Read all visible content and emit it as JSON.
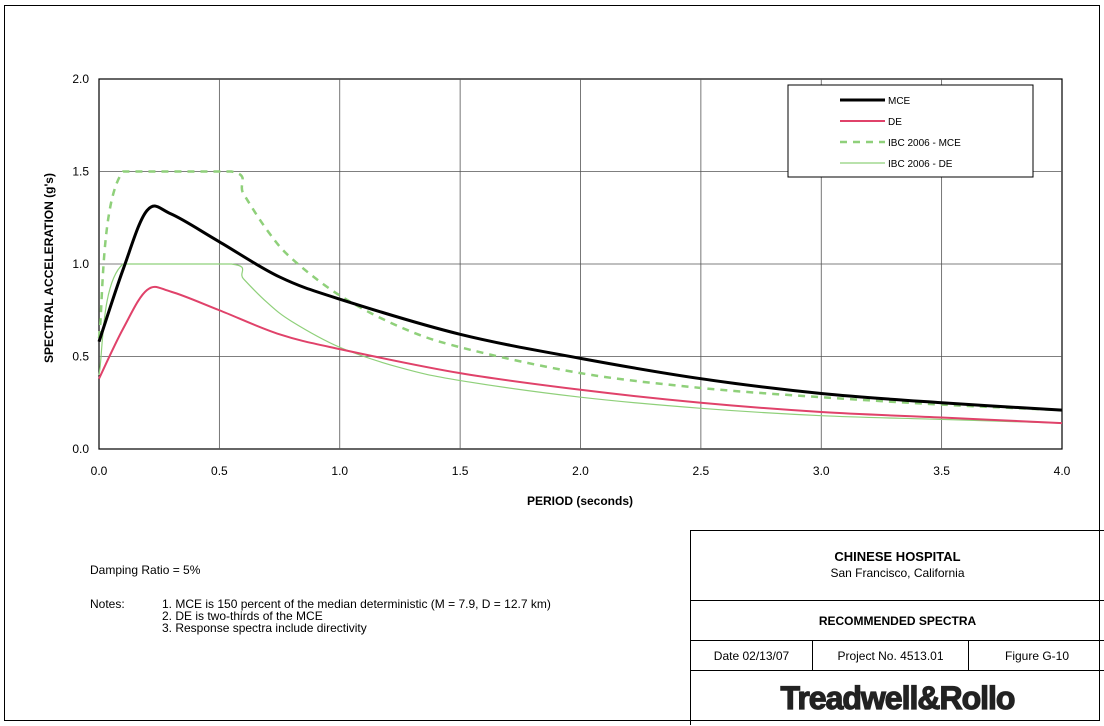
{
  "chart_data": {
    "type": "line",
    "xlabel": "PERIOD (seconds)",
    "ylabel": "SPECTRAL ACCELERATION (g's)",
    "xlim": [
      0.0,
      4.0
    ],
    "ylim": [
      0.0,
      2.0
    ],
    "x_ticks": [
      "0.0",
      "0.5",
      "1.0",
      "1.5",
      "2.0",
      "2.5",
      "3.0",
      "3.5",
      "4.0"
    ],
    "y_ticks": [
      "0.0",
      "0.5",
      "1.0",
      "1.5",
      "2.0"
    ],
    "grid": true,
    "legend_position": "top-right",
    "series": [
      {
        "name": "MCE",
        "color": "#000000",
        "style": "solid-thick",
        "points": [
          [
            0.0,
            0.58
          ],
          [
            0.1,
            0.97
          ],
          [
            0.2,
            1.29
          ],
          [
            0.3,
            1.27
          ],
          [
            0.5,
            1.12
          ],
          [
            0.75,
            0.93
          ],
          [
            1.0,
            0.81
          ],
          [
            1.5,
            0.62
          ],
          [
            2.0,
            0.49
          ],
          [
            2.5,
            0.38
          ],
          [
            3.0,
            0.3
          ],
          [
            3.5,
            0.25
          ],
          [
            4.0,
            0.21
          ]
        ]
      },
      {
        "name": "DE",
        "color": "#e0426a",
        "style": "solid",
        "points": [
          [
            0.0,
            0.38
          ],
          [
            0.1,
            0.65
          ],
          [
            0.2,
            0.86
          ],
          [
            0.3,
            0.85
          ],
          [
            0.5,
            0.75
          ],
          [
            0.75,
            0.62
          ],
          [
            1.0,
            0.54
          ],
          [
            1.5,
            0.41
          ],
          [
            2.0,
            0.32
          ],
          [
            2.5,
            0.25
          ],
          [
            3.0,
            0.2
          ],
          [
            3.5,
            0.17
          ],
          [
            4.0,
            0.14
          ]
        ]
      },
      {
        "name": "IBC 2006 - MCE",
        "color": "#8fd07a",
        "style": "dashed",
        "points": [
          [
            0.0,
            0.6
          ],
          [
            0.1,
            1.5
          ],
          [
            0.55,
            1.5
          ],
          [
            0.6,
            1.38
          ],
          [
            0.7,
            1.18
          ],
          [
            0.8,
            1.03
          ],
          [
            1.0,
            0.83
          ],
          [
            1.25,
            0.66
          ],
          [
            1.5,
            0.55
          ],
          [
            2.0,
            0.41
          ],
          [
            2.5,
            0.33
          ],
          [
            3.0,
            0.28
          ],
          [
            3.5,
            0.24
          ],
          [
            4.0,
            0.21
          ]
        ]
      },
      {
        "name": "IBC 2006 - DE",
        "color": "#8fd07a",
        "style": "solid-thin",
        "points": [
          [
            0.0,
            0.4
          ],
          [
            0.1,
            1.0
          ],
          [
            0.55,
            1.0
          ],
          [
            0.6,
            0.92
          ],
          [
            0.7,
            0.79
          ],
          [
            0.8,
            0.69
          ],
          [
            1.0,
            0.55
          ],
          [
            1.25,
            0.44
          ],
          [
            1.5,
            0.37
          ],
          [
            2.0,
            0.28
          ],
          [
            2.5,
            0.22
          ],
          [
            3.0,
            0.18
          ],
          [
            3.5,
            0.16
          ],
          [
            4.0,
            0.14
          ]
        ]
      }
    ]
  },
  "damping": "Damping Ratio = 5%",
  "notes": {
    "label": "Notes:",
    "items": [
      "1. MCE is 150 percent of the median deterministic (M = 7.9, D = 12.7 km)",
      "2. DE is two-thirds of the MCE",
      "3. Response spectra include directivity"
    ]
  },
  "title_block": {
    "project_name": "CHINESE HOSPITAL",
    "location": "San Francisco, California",
    "figure_title": "RECOMMENDED SPECTRA",
    "date": "Date 02/13/07",
    "project_no": "Project No. 4513.01",
    "figure_no": "Figure G-10",
    "logo": "Treadwell&Rollo"
  }
}
